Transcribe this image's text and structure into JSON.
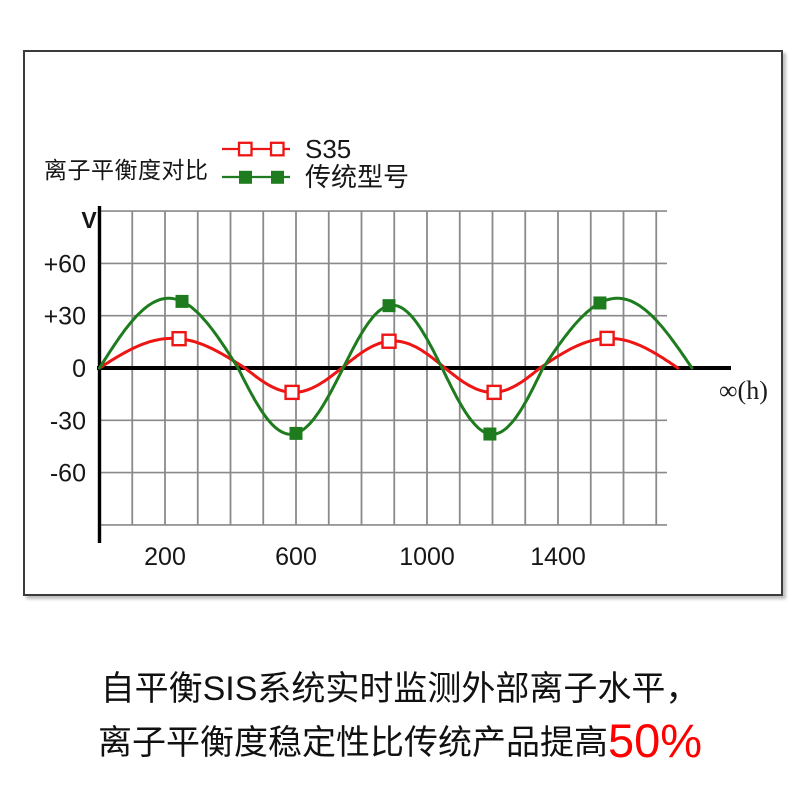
{
  "legend": {
    "title": "离子平衡度对比",
    "items": [
      {
        "id": "s35",
        "label": "S35",
        "color": "#ee1515",
        "marker": "open-square"
      },
      {
        "id": "traditional",
        "label": "传统型号",
        "color": "#1e7c1e",
        "marker": "filled-square"
      }
    ]
  },
  "chart_data": {
    "type": "line",
    "title": "离子平衡度对比",
    "ylabel": "V",
    "xlabel": "∞(h)",
    "x_ticks": [
      200,
      600,
      1000,
      1400
    ],
    "y_ticks": [
      "+60",
      "+30",
      "0",
      "-30",
      "-60"
    ],
    "y_tick_values": [
      60,
      30,
      0,
      -30,
      -60
    ],
    "xlim": [
      0,
      1950
    ],
    "ylim": [
      -90,
      90
    ],
    "grid": true,
    "grid_x_step": 100,
    "grid_x_max": 1700,
    "grid_y_values": [
      90,
      60,
      30,
      -30,
      -60,
      -90
    ],
    "legend_position": "top",
    "series": [
      {
        "id": "s35",
        "name": "S35",
        "color": "#ee1515",
        "marker": "open-square",
        "zero_crossings_x": [
          0,
          444,
          740,
          1055,
          1345,
          1766
        ],
        "lobe_amplitudes": [
          17,
          -14,
          15.5,
          -14,
          17
        ],
        "marker_x": [
          243,
          588,
          884,
          1205,
          1550
        ]
      },
      {
        "id": "traditional",
        "name": "传统型号",
        "color": "#1e7c1e",
        "marker": "filled-square",
        "zero_crossings_x": [
          0,
          423,
          744,
          1046,
          1354,
          1809
        ],
        "lobe_amplitudes": [
          40,
          -38,
          36,
          -38,
          40
        ],
        "marker_x": [
          252,
          600,
          884,
          1192,
          1528
        ]
      }
    ]
  },
  "caption": {
    "line1": "自平衡SIS系统实时监测外部离子水平，",
    "line2_prefix": "离子平衡度稳定性比传统产品提高",
    "line2_highlight": "50%",
    "highlight_color": "#ff0000"
  },
  "colors": {
    "series_s35": "#ee1515",
    "series_traditional": "#1e7c1e",
    "axis": "#000000",
    "grid": "#8a8a8a",
    "frame_border": "#3c3c3c",
    "text": "#161616",
    "highlight": "#ff0000"
  }
}
